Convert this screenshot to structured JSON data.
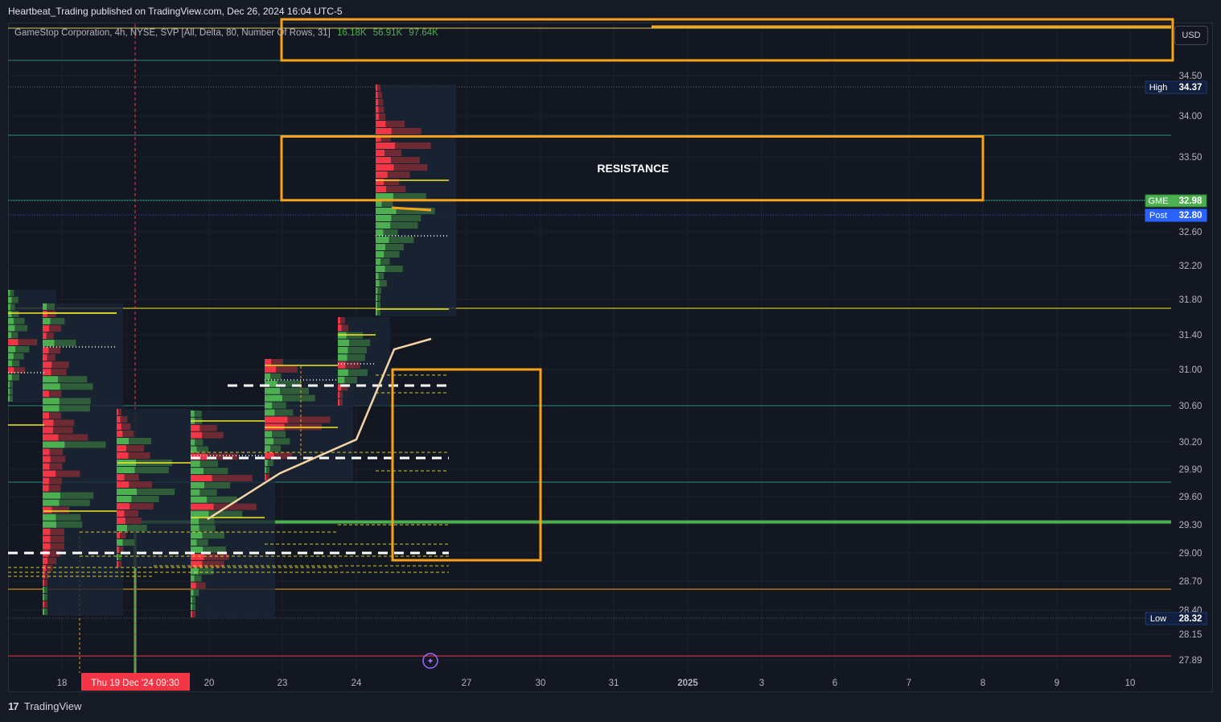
{
  "header": {
    "published": "Heartbeat_Trading published on TradingView.com, Dec 26, 2024 16:04 UTC-5"
  },
  "legend": {
    "symbol": "GameStop Corporation, 4h, NYSE, SVP [All, Delta, 80, Number Of Rows, 31]",
    "values": [
      "16.18K",
      "56.91K",
      "97.64K"
    ]
  },
  "currency": "USD",
  "footer": {
    "brand": "TradingView"
  },
  "annotation": {
    "resistance": "RESISTANCE"
  },
  "colors": {
    "up": "#4caf50",
    "down": "#f23645",
    "orange": "#f7a21b",
    "yellow": "#f5e829",
    "path": "#f5d5a8",
    "green_line": "#4caf50"
  },
  "chart_data": {
    "type": "bar",
    "symbol": "GME",
    "timeframe": "4h",
    "y_axis": {
      "ticks": [
        "34.50",
        "34.00",
        "33.50",
        "32.60",
        "32.20",
        "31.80",
        "31.40",
        "31.00",
        "30.60",
        "30.20",
        "29.90",
        "29.60",
        "29.30",
        "29.00",
        "28.70",
        "28.40",
        "28.15",
        "27.89"
      ]
    },
    "x_axis": {
      "ticks": [
        "18",
        "20",
        "23",
        "24",
        "27",
        "30",
        "31",
        "2025",
        "3",
        "6",
        "7",
        "8",
        "9",
        "10"
      ]
    },
    "x_highlight": "Thu 19 Dec '24   09:30",
    "price_labels": [
      {
        "name": "High",
        "value": "34.37"
      },
      {
        "name": "GME",
        "value": "32.98"
      },
      {
        "name": "Post",
        "value": "32.80"
      },
      {
        "name": "Low",
        "value": "28.32"
      }
    ],
    "zones": [
      {
        "label": "RESISTANCE",
        "top": 33.75,
        "bottom": 32.98
      }
    ],
    "key_levels": [
      {
        "price": 29.33,
        "kind": "support"
      },
      {
        "price": 31.72,
        "kind": "level"
      },
      {
        "price": 30.57,
        "kind": "level"
      },
      {
        "price": 29.77,
        "kind": "level"
      },
      {
        "price": 28.62,
        "kind": "level"
      }
    ]
  }
}
